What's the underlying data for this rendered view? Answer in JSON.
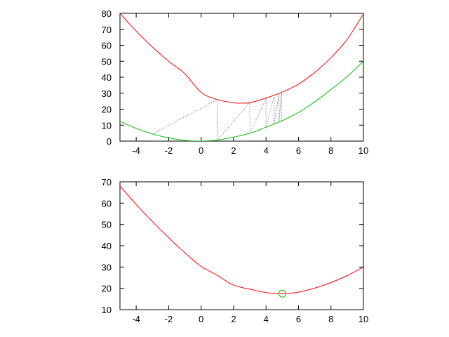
{
  "chart_data": [
    {
      "type": "line",
      "title": "",
      "xlabel": "",
      "ylabel": "",
      "xlim": [
        -5,
        10
      ],
      "ylim": [
        0,
        80
      ],
      "x_ticks": [
        -4,
        -2,
        0,
        2,
        4,
        6,
        8,
        10
      ],
      "y_ticks": [
        0,
        10,
        20,
        30,
        40,
        50,
        60,
        70,
        80
      ],
      "grid": false,
      "legend": "none",
      "series": [
        {
          "color": "#ff0000",
          "points": [
            [
              -5,
              80
            ],
            [
              -4,
              68.9
            ],
            [
              -3,
              58.9
            ],
            [
              -2,
              50.0
            ],
            [
              -1,
              42.2
            ],
            [
              0,
              30.5
            ],
            [
              1,
              26.0
            ],
            [
              2,
              24.0
            ],
            [
              2.5,
              23.8
            ],
            [
              3,
              24.1
            ],
            [
              4,
              27.0
            ],
            [
              5,
              30.7
            ],
            [
              6,
              35.7
            ],
            [
              7,
              43.0
            ],
            [
              8,
              52.2
            ],
            [
              9,
              63.7
            ],
            [
              10,
              79.5
            ]
          ]
        },
        {
          "color": "#00c000",
          "points": [
            [
              -5,
              12.5
            ],
            [
              -4,
              8.0
            ],
            [
              -3,
              4.5
            ],
            [
              -2,
              2.0
            ],
            [
              -1,
              0.5
            ],
            [
              -0.5,
              0.1
            ],
            [
              0,
              0
            ],
            [
              0.5,
              0.2
            ],
            [
              1,
              0.6
            ],
            [
              2,
              2.5
            ],
            [
              3,
              4.9
            ],
            [
              4,
              8.7
            ],
            [
              5,
              12.8
            ],
            [
              6,
              18.0
            ],
            [
              7,
              24.6
            ],
            [
              8,
              32.2
            ],
            [
              9,
              40.4
            ],
            [
              10,
              50.0
            ]
          ]
        },
        {
          "color": "#808080",
          "style": "dotted",
          "points": [
            [
              -3,
              4.5
            ],
            [
              1,
              26.0
            ],
            [
              1,
              0.6
            ],
            [
              3,
              24.1
            ],
            [
              3,
              4.9
            ],
            [
              4,
              27.0
            ],
            [
              4,
              8.7
            ],
            [
              4.5,
              28.5
            ],
            [
              4.5,
              10.5
            ],
            [
              4.8,
              29.7
            ],
            [
              4.8,
              12.0
            ],
            [
              4.95,
              30.4
            ],
            [
              4.95,
              12.7
            ]
          ]
        }
      ]
    },
    {
      "type": "line",
      "title": "",
      "xlabel": "",
      "ylabel": "",
      "xlim": [
        -5,
        10
      ],
      "ylim": [
        10,
        70
      ],
      "x_ticks": [
        -4,
        -2,
        0,
        2,
        4,
        6,
        8,
        10
      ],
      "y_ticks": [
        10,
        20,
        30,
        40,
        50,
        60,
        70
      ],
      "grid": false,
      "legend": "none",
      "series": [
        {
          "color": "#ff0000",
          "points": [
            [
              -5,
              68
            ],
            [
              -4,
              59.4
            ],
            [
              -3,
              51.3
            ],
            [
              -2,
              43.8
            ],
            [
              -1,
              36.7
            ],
            [
              0,
              30.3
            ],
            [
              1,
              26.1
            ],
            [
              2,
              21.5
            ],
            [
              3,
              19.6
            ],
            [
              4,
              18.0
            ],
            [
              5,
              17.5
            ],
            [
              6,
              18.2
            ],
            [
              7,
              20.1
            ],
            [
              8,
              22.7
            ],
            [
              9,
              26.0
            ],
            [
              10,
              30.0
            ]
          ]
        }
      ],
      "markers": [
        {
          "x": 5,
          "y": 17.5,
          "shape": "circle",
          "color": "#00c000"
        }
      ]
    }
  ]
}
